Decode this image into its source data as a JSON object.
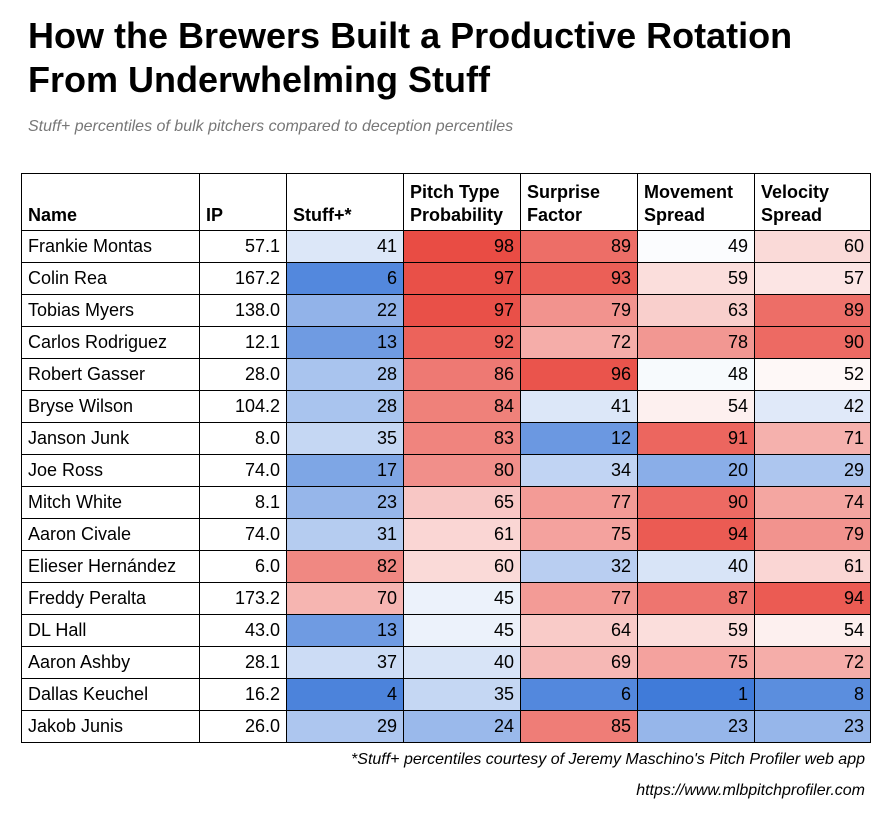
{
  "chart_data": {
    "type": "table",
    "title": "How the Brewers Built a Productive Rotation From Underwhelming Stuff",
    "subtitle": "Stuff+ percentiles of bulk pitchers compared to deception percentiles",
    "columns": [
      "Name",
      "IP",
      "Stuff+*",
      "Pitch Type Probability",
      "Surprise Factor",
      "Movement Spread",
      "Velocity Spread"
    ],
    "rows": [
      {
        "name": "Frankie Montas",
        "ip": "57.1",
        "values": [
          41,
          98,
          89,
          49,
          60
        ]
      },
      {
        "name": "Colin Rea",
        "ip": "167.2",
        "values": [
          6,
          97,
          93,
          59,
          57
        ]
      },
      {
        "name": "Tobias Myers",
        "ip": "138.0",
        "values": [
          22,
          97,
          79,
          63,
          89
        ]
      },
      {
        "name": "Carlos Rodriguez",
        "ip": "12.1",
        "values": [
          13,
          92,
          72,
          78,
          90
        ]
      },
      {
        "name": "Robert Gasser",
        "ip": "28.0",
        "values": [
          28,
          86,
          96,
          48,
          52
        ]
      },
      {
        "name": "Bryse Wilson",
        "ip": "104.2",
        "values": [
          28,
          84,
          41,
          54,
          42
        ]
      },
      {
        "name": "Janson Junk",
        "ip": "8.0",
        "values": [
          35,
          83,
          12,
          91,
          71
        ]
      },
      {
        "name": "Joe Ross",
        "ip": "74.0",
        "values": [
          17,
          80,
          34,
          20,
          29
        ]
      },
      {
        "name": "Mitch White",
        "ip": "8.1",
        "values": [
          23,
          65,
          77,
          90,
          74
        ]
      },
      {
        "name": "Aaron Civale",
        "ip": "74.0",
        "values": [
          31,
          61,
          75,
          94,
          79
        ]
      },
      {
        "name": "Elieser Hernández",
        "ip": "6.0",
        "values": [
          82,
          60,
          32,
          40,
          61
        ]
      },
      {
        "name": "Freddy Peralta",
        "ip": "173.2",
        "values": [
          70,
          45,
          77,
          87,
          94
        ]
      },
      {
        "name": "DL Hall",
        "ip": "43.0",
        "values": [
          13,
          45,
          64,
          59,
          54
        ]
      },
      {
        "name": "Aaron Ashby",
        "ip": "28.1",
        "values": [
          37,
          40,
          69,
          75,
          72
        ]
      },
      {
        "name": "Dallas Keuchel",
        "ip": "16.2",
        "values": [
          4,
          35,
          6,
          1,
          8
        ]
      },
      {
        "name": "Jakob Junis",
        "ip": "26.0",
        "values": [
          29,
          24,
          85,
          23,
          23
        ]
      }
    ],
    "color_scale": {
      "low": "#3c78d8",
      "mid": "#ffffff",
      "high": "#e8453c",
      "min": 0,
      "mid_value": 50,
      "max": 100
    }
  },
  "footnote": "*Stuff+ percentiles courtesy of Jeremy Maschino's Pitch Profiler web app",
  "url": "https://www.mlbpitchprofiler.com"
}
